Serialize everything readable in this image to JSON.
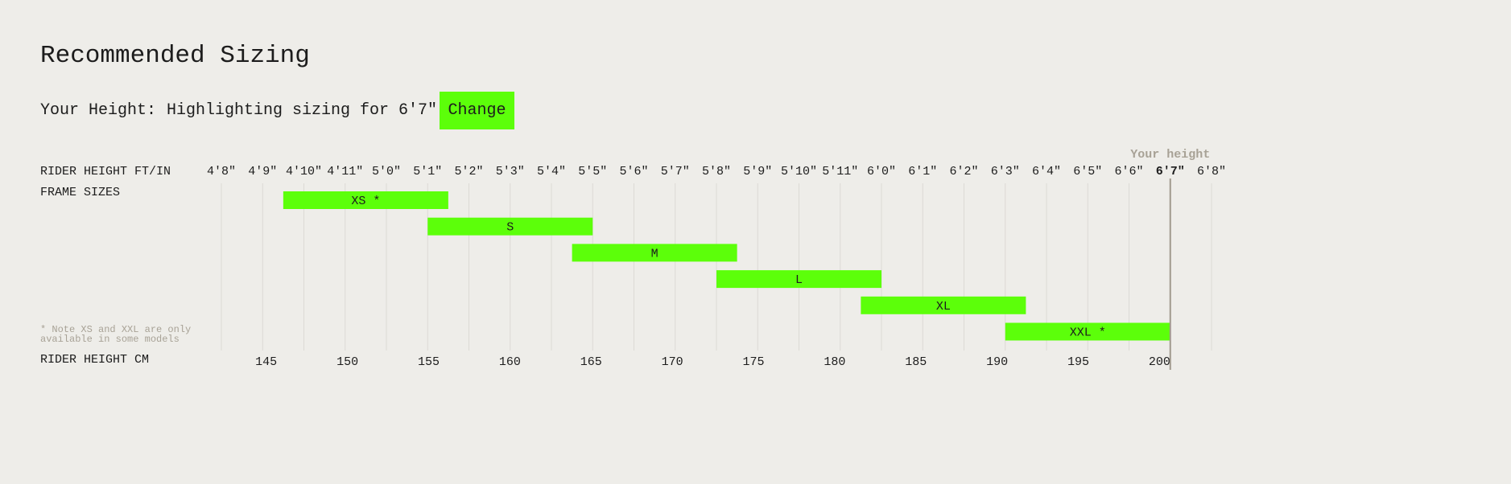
{
  "header": {
    "title": "Recommended Sizing",
    "height_label": "Your Height:",
    "height_text": "Highlighting sizing for 6'7\"",
    "button": "Change"
  },
  "chart_data": {
    "type": "range-bar",
    "top_axis_label": "RIDER HEIGHT FT/IN",
    "y_label": "FRAME SIZES",
    "bottom_axis_label": "RIDER HEIGHT CM",
    "note": "* Note XS and XXL are only available in some models",
    "color": "#5cff0a",
    "grid": true,
    "xlim": [
      142.24,
      203.2
    ],
    "xticks_top": [
      {
        "value": 142.24,
        "label": "4'8\""
      },
      {
        "value": 144.78,
        "label": "4'9\""
      },
      {
        "value": 147.32,
        "label": "4'10\""
      },
      {
        "value": 149.86,
        "label": "4'11\""
      },
      {
        "value": 152.4,
        "label": "5'0\""
      },
      {
        "value": 154.94,
        "label": "5'1\""
      },
      {
        "value": 157.48,
        "label": "5'2\""
      },
      {
        "value": 160.02,
        "label": "5'3\""
      },
      {
        "value": 162.56,
        "label": "5'4\""
      },
      {
        "value": 165.1,
        "label": "5'5\""
      },
      {
        "value": 167.64,
        "label": "5'6\""
      },
      {
        "value": 170.18,
        "label": "5'7\""
      },
      {
        "value": 172.72,
        "label": "5'8\""
      },
      {
        "value": 175.26,
        "label": "5'9\""
      },
      {
        "value": 177.8,
        "label": "5'10\""
      },
      {
        "value": 180.34,
        "label": "5'11\""
      },
      {
        "value": 182.88,
        "label": "6'0\""
      },
      {
        "value": 185.42,
        "label": "6'1\""
      },
      {
        "value": 187.96,
        "label": "6'2\""
      },
      {
        "value": 190.5,
        "label": "6'3\""
      },
      {
        "value": 193.04,
        "label": "6'4\""
      },
      {
        "value": 195.58,
        "label": "6'5\""
      },
      {
        "value": 198.12,
        "label": "6'6\""
      },
      {
        "value": 200.66,
        "label": "6'7\""
      },
      {
        "value": 203.2,
        "label": "6'8\""
      }
    ],
    "xticks": [
      145,
      150,
      155,
      160,
      165,
      170,
      175,
      180,
      185,
      190,
      195,
      200
    ],
    "categories": [
      "XS *",
      "S",
      "M",
      "L",
      "XL",
      "XXL *"
    ],
    "start": [
      146.05,
      154.94,
      163.83,
      172.72,
      181.61,
      190.5
    ],
    "end": [
      156.21,
      165.1,
      173.99,
      182.88,
      191.77,
      200.66
    ],
    "marker": {
      "label": "Your height",
      "value": 200.66,
      "color": "#a09a8e"
    }
  }
}
